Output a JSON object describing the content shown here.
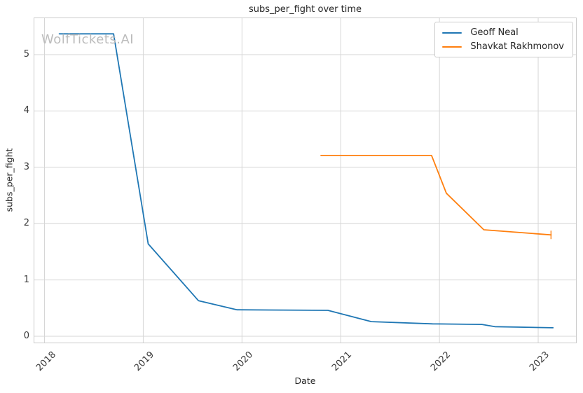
{
  "watermark": "WolfTickets.AI",
  "chart_data": {
    "type": "line",
    "title": "subs_per_fight over time",
    "xlabel": "Date",
    "ylabel": "subs_per_fight",
    "x_unit": "decimal_year",
    "xlim": [
      2017.89,
      2023.39
    ],
    "ylim": [
      -0.125,
      5.66
    ],
    "grid": true,
    "legend_position": "upper right",
    "x_ticks": [
      {
        "value": 2018,
        "label": "2018"
      },
      {
        "value": 2019,
        "label": "2019"
      },
      {
        "value": 2020,
        "label": "2020"
      },
      {
        "value": 2021,
        "label": "2021"
      },
      {
        "value": 2022,
        "label": "2022"
      },
      {
        "value": 2023,
        "label": "2023"
      }
    ],
    "y_ticks": [
      {
        "value": 0,
        "label": "0"
      },
      {
        "value": 1,
        "label": "1"
      },
      {
        "value": 2,
        "label": "2"
      },
      {
        "value": 3,
        "label": "3"
      },
      {
        "value": 4,
        "label": "4"
      },
      {
        "value": 5,
        "label": "5"
      }
    ],
    "series": [
      {
        "name": "Geoff Neal",
        "color": "#1f77b4",
        "x": [
          2018.15,
          2018.7,
          2019.05,
          2019.56,
          2019.95,
          2020.87,
          2021.31,
          2021.93,
          2022.43,
          2022.56,
          2023.15
        ],
        "y": [
          5.37,
          5.37,
          1.64,
          0.63,
          0.47,
          0.46,
          0.26,
          0.22,
          0.21,
          0.17,
          0.15
        ],
        "end_marker": "none"
      },
      {
        "name": "Shavkat Rakhmonov",
        "color": "#ff7f0e",
        "x": [
          2020.8,
          2021.92,
          2022.07,
          2022.45,
          2023.13
        ],
        "y": [
          3.21,
          3.21,
          2.54,
          1.89,
          1.8
        ],
        "end_marker": "tick"
      }
    ]
  },
  "colors": {
    "grid": "#d6d6d6",
    "axes_border": "#cacaca",
    "tick_text": "#3a3a3a",
    "title_text": "#262626",
    "watermark": "#bcbcbc"
  }
}
